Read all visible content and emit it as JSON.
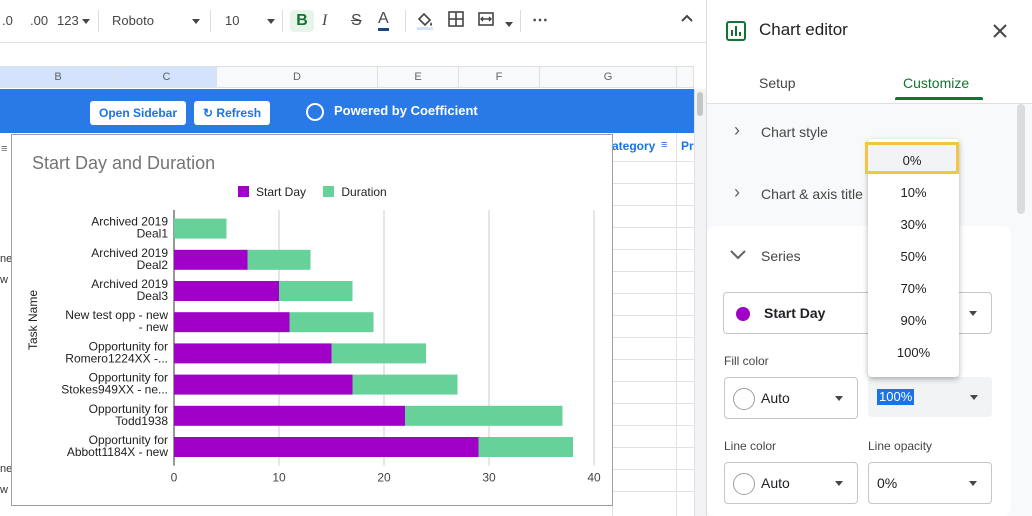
{
  "toolbar": {
    "dec_minus": ".0",
    "dec_plus": ".00",
    "format_label": "123",
    "font_name": "Roboto",
    "font_size": "10",
    "bold": "B",
    "italic": "I",
    "strike": "S",
    "text_color": "A",
    "more": "⋯"
  },
  "grid": {
    "columns": [
      "B",
      "C",
      "D",
      "E",
      "F",
      "G"
    ],
    "visible_header_text": "ategory",
    "visible_header_text2": "Pr",
    "left_fragments": [
      "ne",
      "w",
      "ne",
      "w"
    ]
  },
  "coefficient": {
    "open_sidebar": "Open Sidebar",
    "refresh": "Refresh",
    "powered_by": "Powered by Coefficient"
  },
  "chart_data": {
    "type": "bar",
    "orientation": "horizontal",
    "stacked": true,
    "title": "Start Day and Duration",
    "ylabel": "Task Name",
    "xlabel": "",
    "xlim": [
      0,
      40
    ],
    "x_ticks": [
      "0",
      "10",
      "20",
      "30",
      "40"
    ],
    "categories": [
      [
        "Archived 2019",
        "Deal1"
      ],
      [
        "Archived 2019",
        "Deal2"
      ],
      [
        "Archived 2019",
        "Deal3"
      ],
      [
        "New test opp - new",
        "- new"
      ],
      [
        "Opportunity for",
        "Romero1224XX -..."
      ],
      [
        "Opportunity for",
        "Stokes949XX - ne..."
      ],
      [
        "Opportunity for",
        "Todd1938"
      ],
      [
        "Opportunity for",
        "Abbott1184X - new"
      ]
    ],
    "series": [
      {
        "name": "Start Day",
        "color": "#a100c8",
        "values": [
          0,
          7,
          10,
          11,
          15,
          17,
          22,
          29
        ]
      },
      {
        "name": "Duration",
        "color": "#66d198",
        "values": [
          5,
          6,
          7,
          8,
          9,
          10,
          15,
          9
        ]
      }
    ],
    "legend": "top"
  },
  "editor": {
    "title": "Chart editor",
    "tabs": [
      "Setup",
      "Customize"
    ],
    "active_tab": "Customize",
    "sections": [
      "Chart style",
      "Chart & axis title",
      "Series"
    ],
    "series_selected": "Start Day",
    "fill_color_label": "Fill color",
    "fill_color_value": "Auto",
    "fill_opacity_value": "100%",
    "line_color_label": "Line color",
    "line_color_value": "Auto",
    "line_opacity_label": "Line opacity",
    "line_opacity_value": "0%"
  },
  "dropdown": {
    "options": [
      "0%",
      "10%",
      "30%",
      "50%",
      "70%",
      "90%",
      "100%"
    ],
    "highlighted": "0%"
  },
  "colors": {
    "accent_green": "#137333",
    "coefficient_blue": "#2979e6",
    "start_day": "#a100c8",
    "duration": "#66d198",
    "highlight_box": "#f4c542"
  }
}
